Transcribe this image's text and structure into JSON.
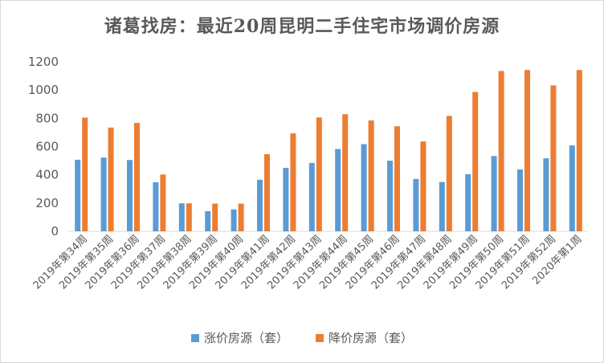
{
  "chart_data": {
    "type": "bar",
    "title": "诸葛找房：最近20周昆明二手住宅市场调价房源",
    "categories": [
      "2019年第34周",
      "2019年第35周",
      "2019年第36周",
      "2019年第37周",
      "2019年第38周",
      "2019年第39周",
      "2019年第40周",
      "2019年第41周",
      "2019年第42周",
      "2019年第43周",
      "2019年第44周",
      "2019年第45周",
      "2019年第46周",
      "2019年第47周",
      "2019年第48周",
      "2019年第49周",
      "2019年第50周",
      "2019年第51周",
      "2019年第52周",
      "2020年第1周"
    ],
    "series": [
      {
        "name": "涨价房源（套）",
        "color": "#5B9BD5",
        "values": [
          507,
          522,
          505,
          347,
          198,
          142,
          155,
          365,
          449,
          484,
          583,
          617,
          500,
          370,
          349,
          404,
          533,
          438,
          517,
          608
        ]
      },
      {
        "name": "降价房源（套）",
        "color": "#ED7D31",
        "values": [
          805,
          735,
          768,
          402,
          198,
          196,
          196,
          546,
          693,
          806,
          829,
          785,
          744,
          636,
          817,
          987,
          1135,
          1142,
          1033,
          1142
        ]
      }
    ],
    "xlabel": "",
    "ylabel": "",
    "ylim": [
      0,
      1200
    ],
    "yticks": [
      0,
      200,
      400,
      600,
      800,
      1000,
      1200
    ],
    "grid": false,
    "legend_position": "bottom"
  }
}
